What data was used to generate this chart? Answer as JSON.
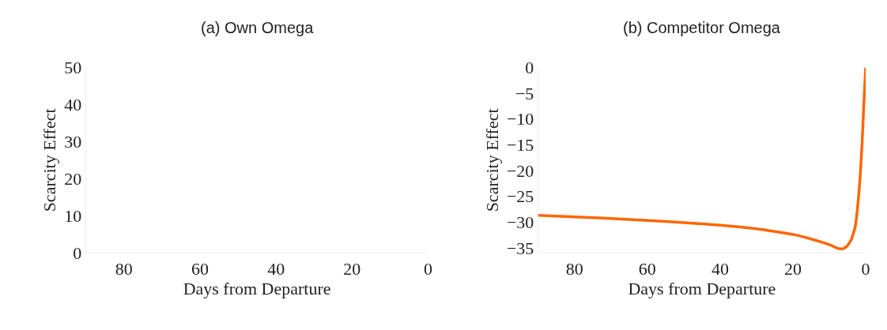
{
  "chart_data": [
    {
      "type": "line",
      "title": "(a) Own Omega",
      "xlabel": "Days from Departure",
      "ylabel": "Scarcity Effect",
      "xlim": [
        90,
        0
      ],
      "xticks": [
        80,
        60,
        40,
        20,
        0
      ],
      "ylim": [
        0,
        50
      ],
      "yticks": [
        0,
        10,
        20,
        30,
        40,
        50
      ]
    },
    {
      "type": "line",
      "title": "(b) Competitor Omega",
      "xlabel": "Days from Departure",
      "ylabel": "Scarcity Effect",
      "xlim": [
        90,
        0
      ],
      "xticks": [
        80,
        60,
        40,
        20,
        0
      ],
      "ylim": [
        -36,
        0
      ],
      "yticks": [
        -35,
        -30,
        -25,
        -20,
        -15,
        -10,
        -5,
        0
      ],
      "x": [
        90,
        80,
        70,
        60,
        50,
        40,
        30,
        20,
        15,
        10,
        8,
        7,
        6,
        5,
        4,
        3,
        2.5,
        2,
        1.5,
        1,
        0.5,
        0
      ],
      "series": [
        {
          "color": "#ff6600",
          "values": [
            -28.7,
            -29.0,
            -29.3,
            -29.7,
            -30.1,
            -30.6,
            -31.3,
            -32.4,
            -33.3,
            -34.4,
            -35.0,
            -35.2,
            -35.1,
            -34.6,
            -33.5,
            -31.3,
            -29,
            -25.5,
            -21,
            -15,
            -7,
            0
          ]
        }
      ]
    }
  ]
}
